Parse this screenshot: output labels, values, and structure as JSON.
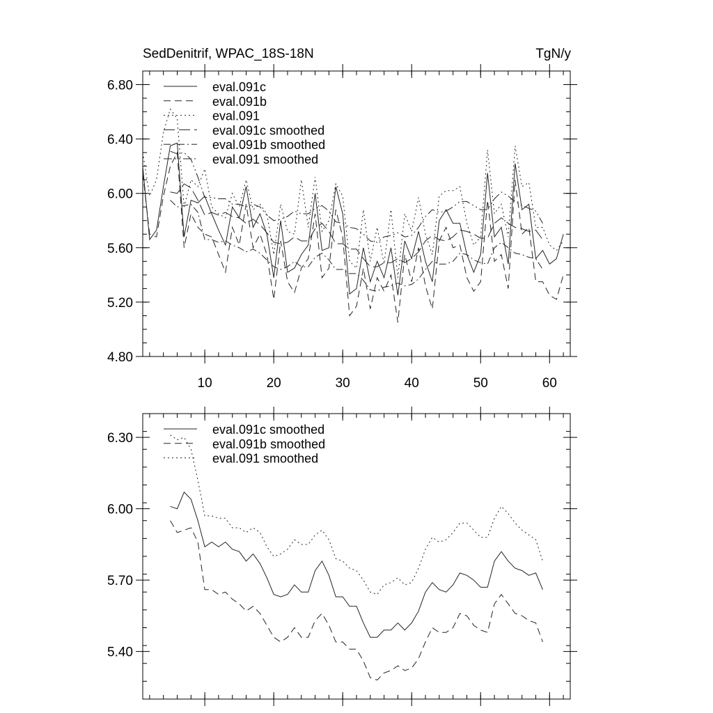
{
  "header": {
    "title_left": "SedDenitrif, WPAC_18S-18N",
    "title_right": "TgN/y"
  },
  "chart_data": [
    {
      "type": "line",
      "xlim": [
        1,
        63
      ],
      "ylim": [
        4.8,
        6.9
      ],
      "y_ticks": [
        4.8,
        5.2,
        5.6,
        6.0,
        6.4,
        6.8
      ],
      "y_tick_labels": [
        "4.80",
        "5.20",
        "5.60",
        "6.00",
        "6.40",
        "6.80"
      ],
      "x_ticks": [
        10,
        20,
        30,
        40,
        50,
        60
      ],
      "x_tick_labels": [
        "10",
        "20",
        "30",
        "40",
        "50",
        "60"
      ],
      "legend_position": "top-left",
      "series": [
        {
          "name": "eval.091c",
          "style": "solid",
          "x": [
            1,
            2,
            3,
            4,
            5,
            6,
            7,
            8,
            9,
            10,
            11,
            12,
            13,
            14,
            15,
            16,
            17,
            18,
            19,
            20,
            21,
            22,
            23,
            24,
            25,
            26,
            27,
            28,
            29,
            30,
            31,
            32,
            33,
            34,
            35,
            36,
            37,
            38,
            39,
            40,
            41,
            42,
            43,
            44,
            45,
            46,
            47,
            48,
            49,
            50,
            51,
            52,
            53,
            54,
            55,
            56,
            57,
            58,
            59,
            60,
            61,
            62
          ],
          "values": [
            6.2,
            5.66,
            5.73,
            6.05,
            6.35,
            6.37,
            5.68,
            5.95,
            5.93,
            5.98,
            5.85,
            5.73,
            5.62,
            5.9,
            5.82,
            6.05,
            5.75,
            5.85,
            5.7,
            5.38,
            5.8,
            5.42,
            5.45,
            5.55,
            5.62,
            6.0,
            5.58,
            5.6,
            6.05,
            5.85,
            5.26,
            5.3,
            5.6,
            5.35,
            5.5,
            5.38,
            5.6,
            5.25,
            5.65,
            5.52,
            5.72,
            5.5,
            5.35,
            5.8,
            5.88,
            5.78,
            5.78,
            5.55,
            5.42,
            5.55,
            6.15,
            5.68,
            5.75,
            5.48,
            6.22,
            5.88,
            5.92,
            5.52,
            5.58,
            5.48,
            5.52,
            5.7
          ]
        },
        {
          "name": "eval.091b",
          "style": "dash",
          "x": [
            1,
            2,
            3,
            4,
            5,
            6,
            7,
            8,
            9,
            10,
            11,
            12,
            13,
            14,
            15,
            16,
            17,
            18,
            19,
            20,
            21,
            22,
            23,
            24,
            25,
            26,
            27,
            28,
            29,
            30,
            31,
            32,
            33,
            34,
            35,
            36,
            37,
            38,
            39,
            40,
            41,
            42,
            43,
            44,
            45,
            46,
            47,
            48,
            49,
            50,
            51,
            52,
            53,
            54,
            55,
            56,
            57,
            58,
            59,
            60,
            61,
            62
          ],
          "values": [
            6.15,
            5.7,
            5.68,
            5.98,
            6.2,
            6.3,
            5.6,
            5.85,
            5.75,
            5.7,
            5.68,
            5.55,
            5.42,
            5.75,
            5.62,
            5.92,
            5.6,
            5.7,
            5.55,
            5.22,
            5.65,
            5.35,
            5.27,
            5.45,
            5.52,
            5.85,
            5.38,
            5.45,
            5.88,
            5.68,
            5.1,
            5.17,
            5.45,
            5.15,
            5.38,
            5.28,
            5.4,
            5.05,
            5.55,
            5.35,
            5.6,
            5.32,
            5.15,
            5.65,
            5.75,
            5.6,
            5.62,
            5.38,
            5.28,
            5.35,
            5.95,
            5.5,
            5.55,
            5.3,
            6.1,
            5.7,
            5.75,
            5.35,
            5.35,
            5.25,
            5.22,
            5.4
          ]
        },
        {
          "name": "eval.091",
          "style": "dot",
          "x": [
            1,
            2,
            3,
            4,
            5,
            6,
            7,
            8,
            9,
            10,
            11,
            12,
            13,
            14,
            15,
            16,
            17,
            18,
            19,
            20,
            21,
            22,
            23,
            24,
            25,
            26,
            27,
            28,
            29,
            30,
            31,
            32,
            33,
            34,
            35,
            36,
            37,
            38,
            39,
            40,
            41,
            42,
            43,
            44,
            45,
            46,
            47,
            48,
            49,
            50,
            51,
            52,
            53,
            54,
            55,
            56,
            57,
            58,
            59,
            60,
            61,
            62
          ],
          "values": [
            6.3,
            5.98,
            6.1,
            6.45,
            6.62,
            6.55,
            5.9,
            6.1,
            6.05,
            6.18,
            5.9,
            5.85,
            5.82,
            6.0,
            5.9,
            6.1,
            5.88,
            5.92,
            5.85,
            5.55,
            5.92,
            5.72,
            5.7,
            6.1,
            5.75,
            6.12,
            5.72,
            5.8,
            6.07,
            5.98,
            5.5,
            5.45,
            5.88,
            5.5,
            5.75,
            5.48,
            5.88,
            5.38,
            5.85,
            5.72,
            5.97,
            5.7,
            5.55,
            5.98,
            6.02,
            6.02,
            6.05,
            5.78,
            5.62,
            5.68,
            6.32,
            5.85,
            5.92,
            5.68,
            6.35,
            6.05,
            6.08,
            5.75,
            5.75,
            5.62,
            5.58,
            5.65
          ]
        },
        {
          "name": "eval.091c smoothed",
          "style": "longdash",
          "x": [
            5,
            6,
            7,
            8,
            9,
            10,
            11,
            12,
            13,
            14,
            15,
            16,
            17,
            18,
            19,
            20,
            21,
            22,
            23,
            24,
            25,
            26,
            27,
            28,
            29,
            30,
            31,
            32,
            33,
            34,
            35,
            36,
            37,
            38,
            39,
            40,
            41,
            42,
            43,
            44,
            45,
            46,
            47,
            48,
            49,
            50,
            51,
            52,
            53,
            54,
            55,
            56,
            57,
            58,
            59
          ],
          "values": [
            6.01,
            6.0,
            6.07,
            6.04,
            5.95,
            5.84,
            5.86,
            5.84,
            5.86,
            5.83,
            5.82,
            5.78,
            5.81,
            5.77,
            5.71,
            5.64,
            5.63,
            5.64,
            5.68,
            5.65,
            5.65,
            5.74,
            5.78,
            5.72,
            5.63,
            5.63,
            5.59,
            5.59,
            5.52,
            5.46,
            5.46,
            5.49,
            5.49,
            5.52,
            5.49,
            5.52,
            5.57,
            5.65,
            5.69,
            5.66,
            5.65,
            5.68,
            5.73,
            5.72,
            5.7,
            5.67,
            5.67,
            5.78,
            5.82,
            5.78,
            5.75,
            5.74,
            5.72,
            5.73,
            5.66
          ]
        },
        {
          "name": "eval.091b smoothed",
          "style": "dashdot",
          "x": [
            5,
            6,
            7,
            8,
            9,
            10,
            11,
            12,
            13,
            14,
            15,
            16,
            17,
            18,
            19,
            20,
            21,
            22,
            23,
            24,
            25,
            26,
            27,
            28,
            29,
            30,
            31,
            32,
            33,
            34,
            35,
            36,
            37,
            38,
            39,
            40,
            41,
            42,
            43,
            44,
            45,
            46,
            47,
            48,
            49,
            50,
            51,
            52,
            53,
            54,
            55,
            56,
            57,
            58,
            59
          ],
          "values": [
            5.95,
            5.9,
            5.91,
            5.92,
            5.86,
            5.66,
            5.66,
            5.64,
            5.65,
            5.62,
            5.6,
            5.57,
            5.59,
            5.56,
            5.51,
            5.46,
            5.44,
            5.46,
            5.5,
            5.46,
            5.46,
            5.53,
            5.56,
            5.51,
            5.44,
            5.44,
            5.41,
            5.41,
            5.36,
            5.29,
            5.28,
            5.31,
            5.32,
            5.34,
            5.32,
            5.33,
            5.37,
            5.44,
            5.5,
            5.48,
            5.48,
            5.5,
            5.56,
            5.55,
            5.51,
            5.49,
            5.48,
            5.6,
            5.64,
            5.6,
            5.56,
            5.55,
            5.53,
            5.52,
            5.44
          ]
        },
        {
          "name": "eval.091 smoothed",
          "style": "dashdotdot",
          "x": [
            5,
            6,
            7,
            8,
            9,
            10,
            11,
            12,
            13,
            14,
            15,
            16,
            17,
            18,
            19,
            20,
            21,
            22,
            23,
            24,
            25,
            26,
            27,
            28,
            29,
            30,
            31,
            32,
            33,
            34,
            35,
            36,
            37,
            38,
            39,
            40,
            41,
            42,
            43,
            44,
            45,
            46,
            47,
            48,
            49,
            50,
            51,
            52,
            53,
            54,
            55,
            56,
            57,
            58,
            59
          ],
          "values": [
            6.31,
            6.29,
            6.3,
            6.25,
            6.12,
            5.97,
            5.97,
            5.96,
            5.96,
            5.92,
            5.92,
            5.9,
            5.92,
            5.9,
            5.84,
            5.8,
            5.81,
            5.83,
            5.87,
            5.85,
            5.85,
            5.89,
            5.91,
            5.87,
            5.79,
            5.78,
            5.75,
            5.74,
            5.7,
            5.65,
            5.64,
            5.68,
            5.69,
            5.71,
            5.68,
            5.69,
            5.75,
            5.83,
            5.88,
            5.86,
            5.87,
            5.9,
            5.94,
            5.94,
            5.91,
            5.88,
            5.88,
            5.96,
            6.01,
            5.98,
            5.94,
            5.91,
            5.89,
            5.87,
            5.78
          ]
        }
      ]
    },
    {
      "type": "line",
      "xlim": [
        1,
        63
      ],
      "ylim": [
        5.2,
        6.4
      ],
      "y_ticks": [
        5.4,
        5.7,
        6.0,
        6.3
      ],
      "y_tick_labels": [
        "5.40",
        "5.70",
        "6.00",
        "6.30"
      ],
      "x_ticks": [
        10,
        20,
        30,
        40,
        50,
        60
      ],
      "legend_position": "top-left",
      "series": [
        {
          "name": "eval.091c smoothed",
          "style": "solid",
          "x": [
            5,
            6,
            7,
            8,
            9,
            10,
            11,
            12,
            13,
            14,
            15,
            16,
            17,
            18,
            19,
            20,
            21,
            22,
            23,
            24,
            25,
            26,
            27,
            28,
            29,
            30,
            31,
            32,
            33,
            34,
            35,
            36,
            37,
            38,
            39,
            40,
            41,
            42,
            43,
            44,
            45,
            46,
            47,
            48,
            49,
            50,
            51,
            52,
            53,
            54,
            55,
            56,
            57,
            58,
            59
          ],
          "values": [
            6.01,
            6.0,
            6.07,
            6.04,
            5.95,
            5.84,
            5.86,
            5.84,
            5.86,
            5.83,
            5.82,
            5.78,
            5.81,
            5.77,
            5.71,
            5.64,
            5.63,
            5.64,
            5.68,
            5.65,
            5.65,
            5.74,
            5.78,
            5.72,
            5.63,
            5.63,
            5.59,
            5.59,
            5.52,
            5.46,
            5.46,
            5.49,
            5.49,
            5.52,
            5.49,
            5.52,
            5.57,
            5.65,
            5.69,
            5.66,
            5.65,
            5.68,
            5.73,
            5.72,
            5.7,
            5.67,
            5.67,
            5.78,
            5.82,
            5.78,
            5.75,
            5.74,
            5.72,
            5.73,
            5.66
          ]
        },
        {
          "name": "eval.091b smoothed",
          "style": "dash",
          "x": [
            5,
            6,
            7,
            8,
            9,
            10,
            11,
            12,
            13,
            14,
            15,
            16,
            17,
            18,
            19,
            20,
            21,
            22,
            23,
            24,
            25,
            26,
            27,
            28,
            29,
            30,
            31,
            32,
            33,
            34,
            35,
            36,
            37,
            38,
            39,
            40,
            41,
            42,
            43,
            44,
            45,
            46,
            47,
            48,
            49,
            50,
            51,
            52,
            53,
            54,
            55,
            56,
            57,
            58,
            59
          ],
          "values": [
            5.95,
            5.9,
            5.91,
            5.92,
            5.86,
            5.66,
            5.66,
            5.64,
            5.65,
            5.62,
            5.6,
            5.57,
            5.59,
            5.56,
            5.51,
            5.46,
            5.44,
            5.46,
            5.5,
            5.46,
            5.46,
            5.53,
            5.56,
            5.51,
            5.44,
            5.44,
            5.41,
            5.41,
            5.36,
            5.29,
            5.28,
            5.31,
            5.32,
            5.34,
            5.32,
            5.33,
            5.37,
            5.44,
            5.5,
            5.48,
            5.48,
            5.5,
            5.56,
            5.55,
            5.51,
            5.49,
            5.48,
            5.6,
            5.64,
            5.6,
            5.56,
            5.55,
            5.53,
            5.52,
            5.44
          ]
        },
        {
          "name": "eval.091 smoothed",
          "style": "dot",
          "x": [
            5,
            6,
            7,
            8,
            9,
            10,
            11,
            12,
            13,
            14,
            15,
            16,
            17,
            18,
            19,
            20,
            21,
            22,
            23,
            24,
            25,
            26,
            27,
            28,
            29,
            30,
            31,
            32,
            33,
            34,
            35,
            36,
            37,
            38,
            39,
            40,
            41,
            42,
            43,
            44,
            45,
            46,
            47,
            48,
            49,
            50,
            51,
            52,
            53,
            54,
            55,
            56,
            57,
            58,
            59
          ],
          "values": [
            6.31,
            6.29,
            6.3,
            6.25,
            6.12,
            5.97,
            5.97,
            5.96,
            5.96,
            5.92,
            5.92,
            5.9,
            5.92,
            5.9,
            5.84,
            5.8,
            5.81,
            5.83,
            5.87,
            5.85,
            5.85,
            5.89,
            5.91,
            5.87,
            5.79,
            5.78,
            5.75,
            5.74,
            5.7,
            5.65,
            5.64,
            5.68,
            5.69,
            5.71,
            5.68,
            5.69,
            5.75,
            5.83,
            5.88,
            5.86,
            5.87,
            5.9,
            5.94,
            5.94,
            5.91,
            5.88,
            5.88,
            5.96,
            6.01,
            5.98,
            5.94,
            5.91,
            5.89,
            5.87,
            5.78
          ]
        }
      ]
    }
  ]
}
